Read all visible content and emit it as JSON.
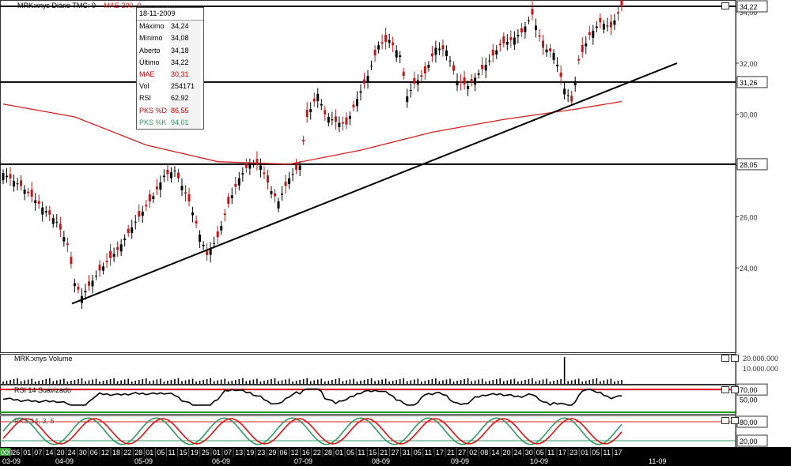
{
  "chart_data": [
    {
      "type": "candlestick",
      "title": "MRK:xnys Diário TMC: 0",
      "overlay_label": "MAE 200, 0",
      "y_axis_side": "right",
      "ylim": [
        22.5,
        34.4
      ],
      "ticks": [
        "34,00",
        "32,00",
        "30,00",
        "28,00",
        "26,00",
        "24,00"
      ],
      "tick_values": [
        34,
        32,
        30,
        28,
        26,
        24
      ],
      "price_lines": [
        {
          "label": "34,22",
          "value": 34.22
        },
        {
          "label": "31,26",
          "value": 31.26
        },
        {
          "label": "28,05",
          "value": 28.05
        }
      ],
      "trendline": {
        "from": [
          "2009-04-09",
          22.6
        ],
        "to": [
          "2009-11-19",
          32.0
        ]
      },
      "close_path": [
        [
          0,
          27.7
        ],
        [
          5,
          27.2
        ],
        [
          10,
          26.5
        ],
        [
          15,
          25.8
        ],
        [
          18,
          24.9
        ],
        [
          20,
          23.4
        ],
        [
          22,
          22.9
        ],
        [
          27,
          23.9
        ],
        [
          32,
          24.7
        ],
        [
          37,
          25.8
        ],
        [
          42,
          26.8
        ],
        [
          45,
          27.6
        ],
        [
          48,
          27.8
        ],
        [
          52,
          26.6
        ],
        [
          55,
          25.3
        ],
        [
          57,
          24.5
        ],
        [
          60,
          25.2
        ],
        [
          63,
          26.5
        ],
        [
          66,
          27.5
        ],
        [
          69,
          28.1
        ],
        [
          72,
          28.0
        ],
        [
          75,
          27.0
        ],
        [
          77,
          26.6
        ],
        [
          80,
          27.5
        ],
        [
          83,
          28.0
        ],
        [
          85,
          29.9
        ],
        [
          88,
          30.8
        ],
        [
          90,
          30.0
        ],
        [
          93,
          29.7
        ],
        [
          96,
          29.6
        ],
        [
          99,
          30.6
        ],
        [
          102,
          31.5
        ],
        [
          105,
          32.7
        ],
        [
          108,
          32.9
        ],
        [
          111,
          32.3
        ],
        [
          113,
          30.7
        ],
        [
          115,
          31.2
        ],
        [
          118,
          31.6
        ],
        [
          121,
          32.6
        ],
        [
          124,
          32.5
        ],
        [
          127,
          31.3
        ],
        [
          130,
          31.1
        ],
        [
          133,
          31.6
        ],
        [
          136,
          32.1
        ],
        [
          139,
          32.7
        ],
        [
          142,
          32.9
        ],
        [
          145,
          33.2
        ],
        [
          148,
          33.9
        ],
        [
          151,
          32.6
        ],
        [
          154,
          32.4
        ],
        [
          157,
          31.0
        ],
        [
          159,
          30.5
        ],
        [
          161,
          32.1
        ],
        [
          164,
          33.1
        ],
        [
          167,
          33.6
        ],
        [
          170,
          33.4
        ],
        [
          173,
          34.2
        ]
      ],
      "mae_200": [
        [
          0,
          30.4
        ],
        [
          20,
          29.9
        ],
        [
          40,
          28.8
        ],
        [
          60,
          28.15
        ],
        [
          80,
          28.05
        ],
        [
          100,
          28.6
        ],
        [
          120,
          29.3
        ],
        [
          140,
          29.8
        ],
        [
          160,
          30.2
        ],
        [
          173,
          30.5
        ]
      ]
    },
    {
      "type": "bar",
      "title": "MRK:xnys Volume",
      "ticks": [
        "20.000.000",
        "10.000.000"
      ],
      "tick_values": [
        20000000,
        10000000
      ],
      "spike": {
        "x": 157,
        "value": 20000000
      }
    },
    {
      "type": "line",
      "title": "RSI 14 Suavizado",
      "ylim": [
        20,
        80
      ],
      "ticks": [
        "70,00",
        "50,00"
      ],
      "tick_values": [
        70,
        50
      ],
      "reference_lines": [
        70,
        30
      ]
    },
    {
      "type": "line",
      "title": "PKS 14, 3, 5",
      "ylim": [
        0,
        100
      ],
      "ticks": [
        "80,00",
        "20,00"
      ],
      "tick_values": [
        80,
        20
      ],
      "series": [
        {
          "name": "PKS %D",
          "color": "#dd1111"
        },
        {
          "name": "PKS %K",
          "color": "#339966"
        }
      ]
    }
  ],
  "tooltip": {
    "date": "18-11-2009",
    "rows": [
      {
        "label": "Máximo",
        "value": "34,24",
        "color": "#000000"
      },
      {
        "label": "Mínimo",
        "value": "34,08",
        "color": "#000000"
      },
      {
        "label": "Aberto",
        "value": "34,18",
        "color": "#000000"
      },
      {
        "label": "Último",
        "value": "34,22",
        "color": "#000000"
      },
      {
        "label": "MAE",
        "value": "30,31",
        "color": "#cc0000"
      },
      {
        "label": "Vol",
        "value": "254171",
        "color": "#000000"
      },
      {
        "label": "RSI",
        "value": "62,92",
        "color": "#000000"
      },
      {
        "label": "PKS %D",
        "value": "86,55",
        "color": "#cc0000"
      },
      {
        "label": "PKS %K",
        "value": "94,01",
        "color": "#339966"
      }
    ]
  },
  "x_axis": {
    "days": [
      "009",
      "26",
      "01",
      "07",
      "14",
      "20",
      "24",
      "30",
      "06",
      "12",
      "18",
      "22",
      "28",
      "01",
      "05",
      "11",
      "15",
      "19",
      "25",
      "01",
      "07",
      "13",
      "19",
      "23",
      "29",
      "06",
      "12",
      "16",
      "22",
      "28",
      "01",
      "05",
      "11",
      "15",
      "21",
      "27",
      "31",
      "05",
      "11",
      "17",
      "21",
      "27",
      "02",
      "08",
      "14",
      "20",
      "24",
      "30",
      "05",
      "11",
      "17",
      "23",
      "01",
      "05",
      "11",
      "17"
    ],
    "months": [
      "03-09",
      "04-09",
      "05-09",
      "06-09",
      "07-09",
      "08-09",
      "09-09",
      "10-09",
      "11-09"
    ]
  },
  "colors": {
    "up": "#000000",
    "down": "#c01818",
    "mae": "#d42020",
    "rsi_ref_top": "#dd0000",
    "rsi_ref_bottom": "#009900",
    "pks_d": "#dd1111",
    "pks_k": "#339966",
    "axis_bg": "#000000",
    "axis_text": "#ffffff"
  }
}
